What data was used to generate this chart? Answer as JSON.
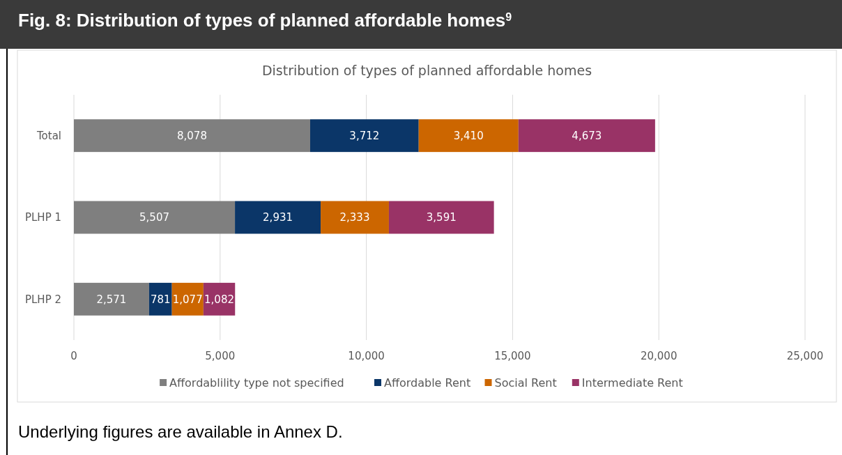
{
  "chart_data": {
    "type": "bar",
    "orientation": "horizontal",
    "stacked": true,
    "title": "Fig. 8: Distribution of types of planned affordable homes$^{9}$",
    "subtitle": "Distribution of types of planned affordable homes",
    "categories": [
      "Total",
      "PLHP 1",
      "PLHP 2"
    ],
    "series": [
      {
        "name": "Affordablility type not specified",
        "color": "#7f7f7f",
        "values": [
          8078,
          5507,
          2571
        ],
        "value_labels": [
          "8,078",
          "5,507",
          "2,571"
        ]
      },
      {
        "name": "Affordable Rent",
        "color": "#0b3668",
        "values": [
          3712,
          2931,
          781
        ],
        "value_labels": [
          "3,712",
          "2,931",
          "781"
        ]
      },
      {
        "name": "Social Rent",
        "color": "#cc6600",
        "values": [
          3410,
          2333,
          1077
        ],
        "value_labels": [
          "3,410",
          "2,333",
          "1,077"
        ]
      },
      {
        "name": "Intermediate Rent",
        "color": "#993366",
        "values": [
          4673,
          3591,
          1082
        ],
        "value_labels": [
          "4,673",
          "3,591",
          "1,082"
        ]
      }
    ],
    "xlim": [
      0,
      25000
    ],
    "xticks": [
      {
        "value": 0,
        "label": "0"
      },
      {
        "value": 5000,
        "label": "5,000"
      },
      {
        "value": 10000,
        "label": "10,000"
      },
      {
        "value": 15000,
        "label": "15,000"
      },
      {
        "value": 20000,
        "label": "20,000"
      },
      {
        "value": 25000,
        "label": "25,000"
      }
    ],
    "grid": "x",
    "legend": "bottom",
    "annotations": [
      "Underlying figures are available in Annex D."
    ]
  }
}
